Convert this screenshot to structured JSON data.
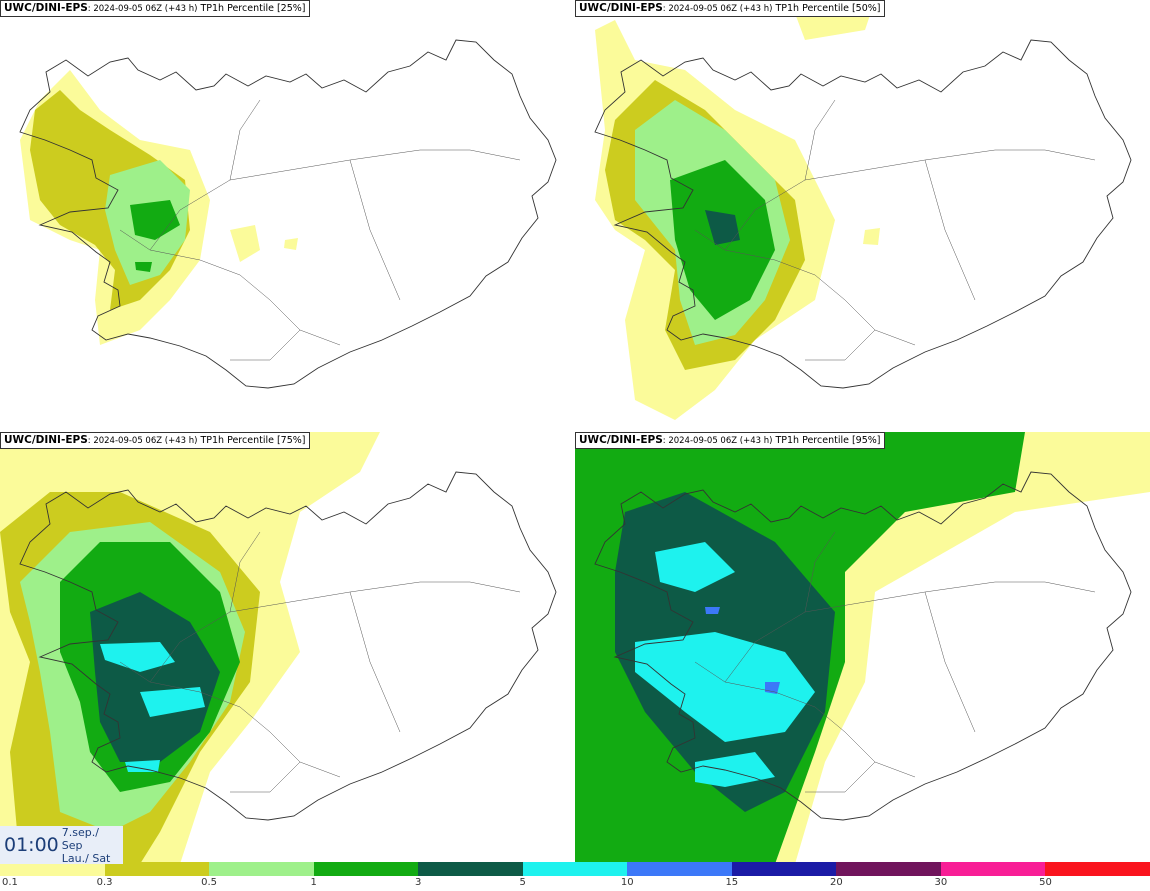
{
  "panels": [
    {
      "model": "UWC/DINI-EPS",
      "run": ": 2024-09-05 06Z (+43 h)",
      "field": " TP1h Percentile [25%]",
      "level": 25
    },
    {
      "model": "UWC/DINI-EPS",
      "run": ": 2024-09-05 06Z (+43 h)",
      "field": " TP1h Percentile [50%]",
      "level": 50
    },
    {
      "model": "UWC/DINI-EPS",
      "run": ": 2024-09-05 06Z (+43 h)",
      "field": " TP1h Percentile [75%]",
      "level": 75
    },
    {
      "model": "UWC/DINI-EPS",
      "run": ": 2024-09-05 06Z (+43 h)",
      "field": " TP1h Percentile [95%]",
      "level": 95
    }
  ],
  "valid_time": {
    "time": "01:00",
    "date_is": "7.sep./ Sep",
    "day_is": "Lau./ Sat"
  },
  "legend": {
    "colors": [
      "#fbfb9a",
      "#cccc1f",
      "#9ef08a",
      "#12ab12",
      "#0d5a46",
      "#1ef2ee",
      "#3c78f8",
      "#1b1ba6",
      "#70145c",
      "#f81e96",
      "#fa141e"
    ],
    "ticks": [
      "0.1",
      "0.3",
      "0.5",
      "1",
      "3",
      "5",
      "10",
      "15",
      "20",
      "30",
      "50"
    ]
  }
}
